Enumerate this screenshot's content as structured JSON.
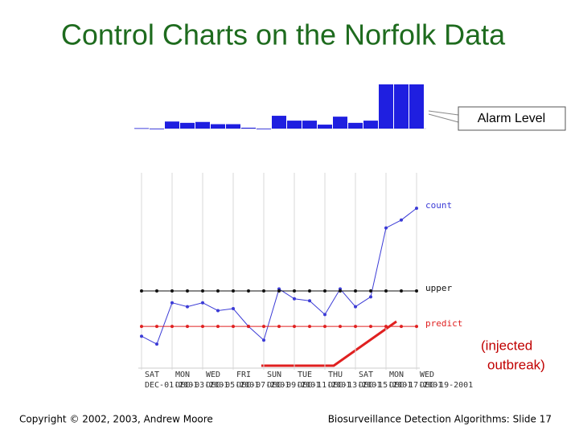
{
  "title": "Control Charts on the Norfolk Data",
  "callouts": [
    "Alarm Level",
    "(injected",
    "outbreak)"
  ],
  "footer_left": "Copyright © 2002, 2003, Andrew Moore",
  "footer_right": "Biosurveillance Detection Algorithms: Slide 17",
  "chart_data": [
    {
      "type": "bar",
      "color": "#1f1fe0",
      "ylim": [
        0,
        10
      ],
      "values": [
        0.1,
        0,
        1.6,
        1.3,
        1.5,
        1.0,
        1.0,
        0.2,
        0,
        2.9,
        1.8,
        1.8,
        0.9,
        2.7,
        1.3,
        1.8,
        10,
        10,
        10
      ]
    },
    {
      "type": "line",
      "ylim": [
        0,
        100
      ],
      "grid": true,
      "categories": [
        "SAT",
        null,
        "MON",
        null,
        "WED",
        null,
        "FRI",
        null,
        "SUN",
        null,
        "TUE",
        null,
        "THU",
        null,
        "SAT",
        null,
        "MON",
        null,
        "WED"
      ],
      "dates": [
        "DEC-01-2001",
        null,
        "DEC-03-2001",
        null,
        "DEC-05-2001",
        null,
        "DEC-07-2001",
        null,
        "DEC-09-2001",
        null,
        "DEC-11-2001",
        null,
        "DEC-13-2001",
        null,
        "DEC-15-2001",
        null,
        "DEC-17-2001",
        null,
        "DEC-19-2001"
      ],
      "series": [
        {
          "name": "count",
          "color": "#3b3bd6",
          "values": [
            17,
            13,
            34,
            32,
            34,
            30,
            31,
            22,
            15,
            41,
            36,
            35,
            28,
            41,
            32,
            37,
            72,
            76,
            82
          ]
        },
        {
          "name": "upper",
          "color": "#111111",
          "values": [
            40,
            40,
            40,
            40,
            40,
            40,
            40,
            40,
            40,
            40,
            40,
            40,
            40,
            40,
            40,
            40,
            40,
            40,
            40
          ]
        },
        {
          "name": "predict",
          "color": "#e02020",
          "values": [
            22,
            22,
            22,
            22,
            22,
            22,
            22,
            22,
            22,
            22,
            22,
            22,
            22,
            22,
            22,
            22,
            22,
            22,
            22
          ]
        }
      ]
    }
  ]
}
